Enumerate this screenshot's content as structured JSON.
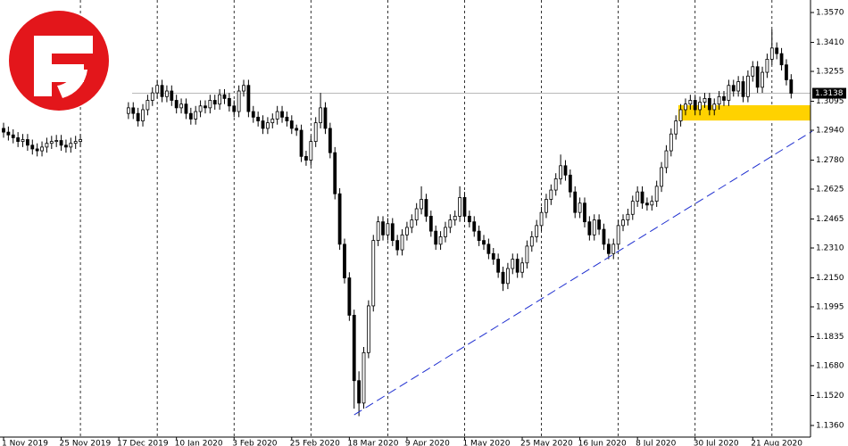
{
  "chart_data": {
    "type": "candlestick",
    "categories": [
      "1 Nov 2019",
      null,
      null,
      null,
      null,
      null,
      null,
      null,
      null,
      null,
      null,
      null,
      "25 Nov 2019",
      null,
      null,
      null,
      null,
      null,
      null,
      null,
      null,
      null,
      null,
      null,
      "17 Dec 2019",
      null,
      null,
      null,
      null,
      null,
      null,
      null,
      null,
      null,
      null,
      null,
      "10 Jan 2020",
      null,
      null,
      null,
      null,
      null,
      null,
      null,
      null,
      null,
      null,
      null,
      "3 Feb 2020",
      null,
      null,
      null,
      null,
      null,
      null,
      null,
      null,
      null,
      null,
      null,
      "25 Feb 2020",
      null,
      null,
      null,
      null,
      null,
      null,
      null,
      null,
      null,
      null,
      null,
      "18 Mar 2020",
      null,
      null,
      null,
      null,
      null,
      null,
      null,
      null,
      null,
      null,
      null,
      "9 Apr 2020",
      null,
      null,
      null,
      null,
      null,
      null,
      null,
      null,
      null,
      null,
      null,
      "1 May 2020",
      null,
      null,
      null,
      null,
      null,
      null,
      null,
      null,
      null,
      null,
      null,
      "25 May 2020",
      null,
      null,
      null,
      null,
      null,
      null,
      null,
      null,
      null,
      null,
      null,
      "16 Jun 2020",
      null,
      null,
      null,
      null,
      null,
      null,
      null,
      null,
      null,
      null,
      null,
      "8 Jul 2020",
      null,
      null,
      null,
      null,
      null,
      null,
      null,
      null,
      null,
      null,
      null,
      "30 Jul 2020",
      null,
      null,
      null,
      null,
      null,
      null,
      null,
      null,
      null,
      null,
      null,
      "21 Aug 2020",
      null,
      null,
      null,
      null,
      null,
      null,
      null,
      null
    ],
    "candles": [
      [
        1.295,
        1.298,
        1.29,
        1.293
      ],
      [
        1.293,
        1.296,
        1.2885,
        1.2915
      ],
      [
        1.2915,
        1.2945,
        1.287,
        1.29
      ],
      [
        1.29,
        1.293,
        1.285,
        1.288
      ],
      [
        1.288,
        1.292,
        1.285,
        1.289
      ],
      [
        1.289,
        1.292,
        1.283,
        1.286
      ],
      [
        1.286,
        1.289,
        1.281,
        1.284
      ],
      [
        1.284,
        1.287,
        1.28,
        1.283
      ],
      [
        1.283,
        1.288,
        1.28,
        1.285
      ],
      [
        1.285,
        1.29,
        1.282,
        1.287
      ],
      [
        1.287,
        1.291,
        1.284,
        1.288
      ],
      [
        1.288,
        1.2915,
        1.285,
        1.2885
      ],
      [
        1.2885,
        1.2915,
        1.283,
        1.286
      ],
      [
        1.286,
        1.289,
        1.282,
        1.285
      ],
      [
        1.285,
        1.29,
        1.282,
        1.287
      ],
      [
        1.287,
        1.291,
        1.284,
        1.288
      ],
      [
        1.288,
        1.292,
        1.285,
        1.289
      ],
      null,
      null,
      null,
      null,
      null,
      null,
      null,
      null,
      null,
      [
        1.303,
        1.309,
        1.3,
        1.306
      ],
      [
        1.306,
        1.309,
        1.3,
        1.303
      ],
      [
        1.303,
        1.306,
        1.296,
        1.299
      ],
      [
        1.299,
        1.308,
        1.296,
        1.305
      ],
      [
        1.305,
        1.313,
        1.302,
        1.31
      ],
      [
        1.31,
        1.317,
        1.307,
        1.314
      ],
      [
        1.314,
        1.321,
        1.311,
        1.318
      ],
      [
        1.318,
        1.321,
        1.309,
        1.312
      ],
      [
        1.312,
        1.318,
        1.309,
        1.315
      ],
      [
        1.315,
        1.318,
        1.307,
        1.31
      ],
      [
        1.31,
        1.313,
        1.303,
        1.306
      ],
      [
        1.306,
        1.311,
        1.303,
        1.308
      ],
      [
        1.308,
        1.311,
        1.3,
        1.303
      ],
      [
        1.303,
        1.306,
        1.297,
        1.3
      ],
      [
        1.3,
        1.307,
        1.297,
        1.304
      ],
      [
        1.304,
        1.31,
        1.301,
        1.307
      ],
      [
        1.307,
        1.31,
        1.303,
        1.306
      ],
      [
        1.306,
        1.313,
        1.303,
        1.31
      ],
      [
        1.31,
        1.313,
        1.305,
        1.308
      ],
      [
        1.308,
        1.316,
        1.305,
        1.313
      ],
      [
        1.313,
        1.316,
        1.308,
        1.311
      ],
      [
        1.311,
        1.314,
        1.304,
        1.307
      ],
      [
        1.307,
        1.31,
        1.301,
        1.304
      ],
      [
        1.304,
        1.318,
        1.301,
        1.315
      ],
      [
        1.315,
        1.321,
        1.312,
        1.318
      ],
      [
        1.318,
        1.321,
        1.301,
        1.304
      ],
      [
        1.304,
        1.307,
        1.298,
        1.301
      ],
      [
        1.301,
        1.304,
        1.296,
        1.299
      ],
      [
        1.299,
        1.302,
        1.292,
        1.295
      ],
      [
        1.295,
        1.301,
        1.292,
        1.298
      ],
      [
        1.298,
        1.303,
        1.295,
        1.3
      ],
      [
        1.3,
        1.307,
        1.297,
        1.304
      ],
      [
        1.304,
        1.307,
        1.298,
        1.301
      ],
      [
        1.301,
        1.304,
        1.296,
        1.299
      ],
      [
        1.299,
        1.302,
        1.292,
        1.295
      ],
      [
        1.295,
        1.297,
        1.291,
        1.294
      ],
      [
        1.294,
        1.297,
        1.277,
        1.28
      ],
      [
        1.28,
        1.283,
        1.275,
        1.278
      ],
      [
        1.278,
        1.291,
        1.275,
        1.288
      ],
      [
        1.288,
        1.301,
        1.285,
        1.298
      ],
      [
        1.298,
        1.314,
        1.295,
        1.306
      ],
      [
        1.306,
        1.309,
        1.292,
        1.295
      ],
      [
        1.295,
        1.298,
        1.279,
        1.282
      ],
      [
        1.282,
        1.285,
        1.257,
        1.26
      ],
      [
        1.26,
        1.263,
        1.23,
        1.233
      ],
      [
        1.233,
        1.236,
        1.212,
        1.215
      ],
      [
        1.215,
        1.218,
        1.192,
        1.195
      ],
      [
        1.195,
        1.198,
        1.145,
        1.16
      ],
      [
        1.16,
        1.165,
        1.141,
        1.148
      ],
      [
        1.148,
        1.178,
        1.145,
        1.175
      ],
      [
        1.175,
        1.203,
        1.172,
        1.2
      ],
      [
        1.2,
        1.238,
        1.197,
        1.235
      ],
      [
        1.235,
        1.248,
        1.232,
        1.245
      ],
      [
        1.245,
        1.248,
        1.235,
        1.238
      ],
      [
        1.238,
        1.247,
        1.235,
        1.244
      ],
      [
        1.244,
        1.247,
        1.232,
        1.235
      ],
      [
        1.235,
        1.238,
        1.227,
        1.23
      ],
      [
        1.23,
        1.241,
        1.227,
        1.238
      ],
      [
        1.238,
        1.245,
        1.235,
        1.242
      ],
      [
        1.242,
        1.249,
        1.239,
        1.246
      ],
      [
        1.246,
        1.255,
        1.243,
        1.252
      ],
      [
        1.252,
        1.264,
        1.249,
        1.257
      ],
      [
        1.257,
        1.26,
        1.245,
        1.248
      ],
      [
        1.248,
        1.251,
        1.237,
        1.24
      ],
      [
        1.24,
        1.243,
        1.23,
        1.233
      ],
      [
        1.233,
        1.24,
        1.23,
        1.237
      ],
      [
        1.237,
        1.245,
        1.234,
        1.242
      ],
      [
        1.242,
        1.249,
        1.239,
        1.246
      ],
      [
        1.246,
        1.251,
        1.243,
        1.248
      ],
      [
        1.248,
        1.264,
        1.245,
        1.258
      ],
      [
        1.258,
        1.261,
        1.245,
        1.248
      ],
      [
        1.248,
        1.251,
        1.242,
        1.245
      ],
      [
        1.245,
        1.248,
        1.237,
        1.24
      ],
      [
        1.24,
        1.243,
        1.232,
        1.235
      ],
      [
        1.235,
        1.238,
        1.23,
        1.233
      ],
      [
        1.233,
        1.236,
        1.225,
        1.228
      ],
      [
        1.228,
        1.231,
        1.222,
        1.225
      ],
      [
        1.225,
        1.228,
        1.215,
        1.218
      ],
      [
        1.218,
        1.221,
        1.208,
        1.212
      ],
      [
        1.212,
        1.223,
        1.209,
        1.22
      ],
      [
        1.22,
        1.228,
        1.217,
        1.225
      ],
      [
        1.225,
        1.228,
        1.215,
        1.218
      ],
      [
        1.218,
        1.226,
        1.215,
        1.223
      ],
      [
        1.223,
        1.235,
        1.22,
        1.232
      ],
      [
        1.232,
        1.24,
        1.229,
        1.237
      ],
      [
        1.237,
        1.246,
        1.234,
        1.243
      ],
      [
        1.243,
        1.253,
        1.24,
        1.25
      ],
      [
        1.25,
        1.26,
        1.247,
        1.257
      ],
      [
        1.257,
        1.265,
        1.254,
        1.262
      ],
      [
        1.262,
        1.271,
        1.259,
        1.268
      ],
      [
        1.268,
        1.281,
        1.265,
        1.275
      ],
      [
        1.275,
        1.278,
        1.267,
        1.27
      ],
      [
        1.27,
        1.273,
        1.258,
        1.261
      ],
      [
        1.261,
        1.264,
        1.247,
        1.25
      ],
      [
        1.25,
        1.258,
        1.247,
        1.255
      ],
      [
        1.255,
        1.258,
        1.242,
        1.245
      ],
      [
        1.245,
        1.248,
        1.235,
        1.238
      ],
      [
        1.238,
        1.249,
        1.235,
        1.246
      ],
      [
        1.246,
        1.249,
        1.238,
        1.241
      ],
      [
        1.241,
        1.244,
        1.23,
        1.233
      ],
      [
        1.233,
        1.236,
        1.225,
        1.228
      ],
      [
        1.228,
        1.236,
        1.225,
        1.233
      ],
      [
        1.233,
        1.246,
        1.23,
        1.243
      ],
      [
        1.243,
        1.249,
        1.24,
        1.246
      ],
      [
        1.246,
        1.252,
        1.243,
        1.249
      ],
      [
        1.249,
        1.259,
        1.246,
        1.256
      ],
      [
        1.256,
        1.264,
        1.253,
        1.261
      ],
      [
        1.261,
        1.264,
        1.252,
        1.255
      ],
      [
        1.255,
        1.258,
        1.251,
        1.254
      ],
      [
        1.254,
        1.259,
        1.251,
        1.256
      ],
      [
        1.256,
        1.267,
        1.253,
        1.264
      ],
      [
        1.264,
        1.277,
        1.261,
        1.274
      ],
      [
        1.274,
        1.286,
        1.271,
        1.283
      ],
      [
        1.283,
        1.295,
        1.28,
        1.292
      ],
      [
        1.292,
        1.302,
        1.289,
        1.299
      ],
      [
        1.299,
        1.308,
        1.296,
        1.305
      ],
      [
        1.305,
        1.311,
        1.302,
        1.308
      ],
      [
        1.308,
        1.313,
        1.305,
        1.31
      ],
      [
        1.31,
        1.313,
        1.302,
        1.305
      ],
      [
        1.305,
        1.312,
        1.302,
        1.309
      ],
      [
        1.309,
        1.314,
        1.306,
        1.311
      ],
      [
        1.311,
        1.314,
        1.302,
        1.305
      ],
      [
        1.305,
        1.311,
        1.302,
        1.308
      ],
      [
        1.308,
        1.315,
        1.305,
        1.312
      ],
      [
        1.312,
        1.315,
        1.307,
        1.31
      ],
      [
        1.31,
        1.321,
        1.307,
        1.318
      ],
      [
        1.318,
        1.321,
        1.312,
        1.315
      ],
      [
        1.315,
        1.323,
        1.312,
        1.32
      ],
      [
        1.32,
        1.323,
        1.309,
        1.312
      ],
      [
        1.312,
        1.326,
        1.309,
        1.323
      ],
      [
        1.323,
        1.331,
        1.32,
        1.328
      ],
      [
        1.328,
        1.331,
        1.314,
        1.317
      ],
      [
        1.317,
        1.328,
        1.314,
        1.325
      ],
      [
        1.325,
        1.335,
        1.322,
        1.332
      ],
      [
        1.332,
        1.348,
        1.329,
        1.338
      ],
      [
        1.338,
        1.341,
        1.332,
        1.335
      ],
      [
        1.335,
        1.338,
        1.326,
        1.329
      ],
      [
        1.329,
        1.332,
        1.318,
        1.321
      ],
      [
        1.321,
        1.324,
        1.311,
        1.3138
      ]
    ],
    "ylim": [
      1.1298,
      1.3637
    ],
    "yticks": [
      {
        "value": 1.357,
        "label": "1.3570"
      },
      {
        "value": 1.341,
        "label": "1.3410"
      },
      {
        "value": 1.3255,
        "label": "1.3255"
      },
      {
        "value": 1.3095,
        "label": "1.3095"
      },
      {
        "value": 1.294,
        "label": "1.2940"
      },
      {
        "value": 1.278,
        "label": "1.2780"
      },
      {
        "value": 1.2625,
        "label": "1.2625"
      },
      {
        "value": 1.2465,
        "label": "1.2465"
      },
      {
        "value": 1.231,
        "label": "1.2310"
      },
      {
        "value": 1.215,
        "label": "1.2150"
      },
      {
        "value": 1.1995,
        "label": "1.1995"
      },
      {
        "value": 1.1835,
        "label": "1.1835"
      },
      {
        "value": 1.168,
        "label": "1.1680"
      },
      {
        "value": 1.152,
        "label": "1.1520"
      },
      {
        "value": 1.136,
        "label": "1.1360"
      }
    ],
    "x_grid": true,
    "last_price": {
      "value": 1.3138,
      "label": "1.3138"
    },
    "zone": {
      "x": [
        140.5,
        168.4
      ],
      "y": [
        1.2992,
        1.3074
      ],
      "color": "#ffd200"
    },
    "trendline": {
      "x": [
        73,
        168.4
      ],
      "y": [
        1.1417,
        1.2935
      ],
      "color": "#1f2fd0"
    }
  }
}
